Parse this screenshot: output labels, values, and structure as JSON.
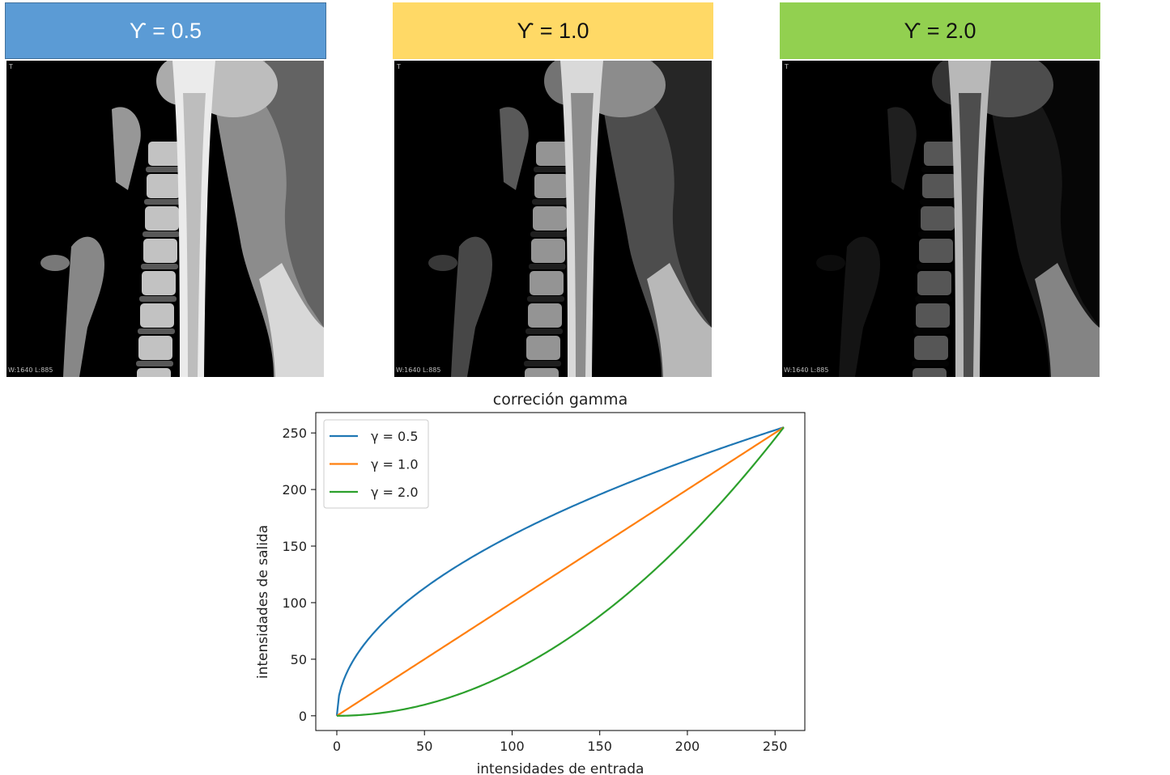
{
  "headers": [
    {
      "label": "ϒ = 0.5",
      "color": "#5b9bd5"
    },
    {
      "label": "ϒ = 1.0",
      "color": "#ffd966"
    },
    {
      "label": "ϒ = 2.0",
      "color": "#92d050"
    }
  ],
  "mri_overlay_text": "W:1640 L:885",
  "mri_corner_text": "T",
  "gammas": [
    0.5,
    1.0,
    2.0
  ],
  "chart_data": {
    "type": "line",
    "title": "correción gamma",
    "xlabel": "intensidades de entrada",
    "ylabel": "intensidades de salida",
    "xlim": [
      -12,
      267
    ],
    "ylim": [
      -13,
      268
    ],
    "xticks": [
      0,
      50,
      100,
      150,
      200,
      250
    ],
    "yticks": [
      0,
      50,
      100,
      150,
      200,
      250
    ],
    "grid": false,
    "legend_position": "top-left",
    "series": [
      {
        "name": "γ = 0.5",
        "color": "#1f77b4",
        "x": [
          0,
          1,
          5,
          10,
          20,
          30,
          40,
          50,
          60,
          80,
          100,
          120,
          140,
          160,
          180,
          200,
          220,
          240,
          255
        ],
        "y": [
          0,
          16,
          35.7,
          50.5,
          71.4,
          87.5,
          101,
          112.9,
          123.7,
          142.8,
          159.7,
          174.9,
          188.9,
          202,
          214.2,
          225.8,
          236.9,
          247.4,
          255
        ]
      },
      {
        "name": "γ = 1.0",
        "color": "#ff7f0e",
        "x": [
          0,
          255
        ],
        "y": [
          0,
          255
        ]
      },
      {
        "name": "γ = 2.0",
        "color": "#2ca02c",
        "x": [
          0,
          20,
          40,
          60,
          80,
          100,
          120,
          140,
          160,
          180,
          200,
          220,
          240,
          255
        ],
        "y": [
          0,
          1.6,
          6.3,
          14.1,
          25.1,
          39.2,
          56.5,
          76.9,
          100.4,
          127.1,
          156.9,
          189.8,
          225.9,
          255
        ]
      }
    ]
  }
}
